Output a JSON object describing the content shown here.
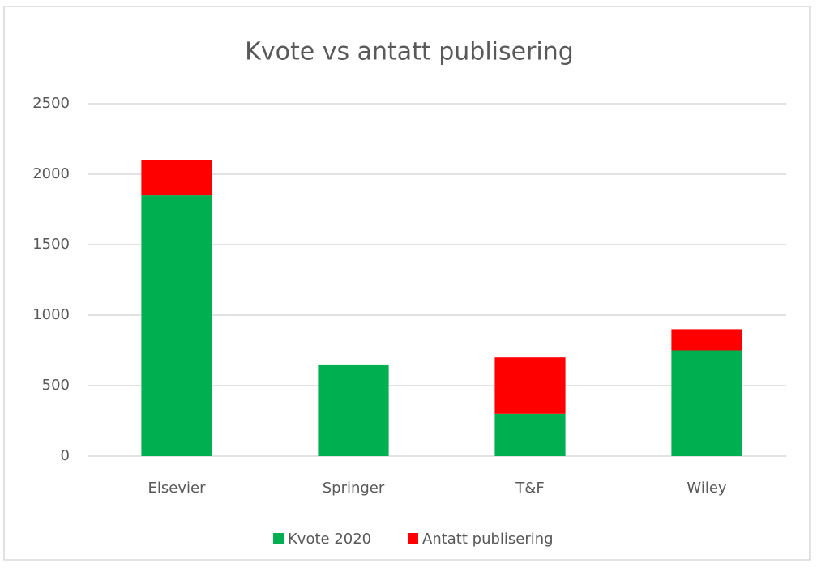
{
  "chart_data": {
    "type": "stacked_bar",
    "title": "Kvote vs antatt publisering",
    "categories": [
      "Elsevier",
      "Springer",
      "T&F",
      "Wiley"
    ],
    "series": [
      {
        "name": "Kvote 2020",
        "color": "#00b050",
        "values": [
          1850,
          650,
          300,
          750
        ]
      },
      {
        "name": "Antatt publisering",
        "color": "#ff0000",
        "values": [
          250,
          0,
          400,
          150
        ]
      }
    ],
    "ylim": [
      0,
      2500
    ],
    "yticks": [
      0,
      500,
      1000,
      1500,
      2000,
      2500
    ],
    "grid": true,
    "legend": "bottom"
  }
}
